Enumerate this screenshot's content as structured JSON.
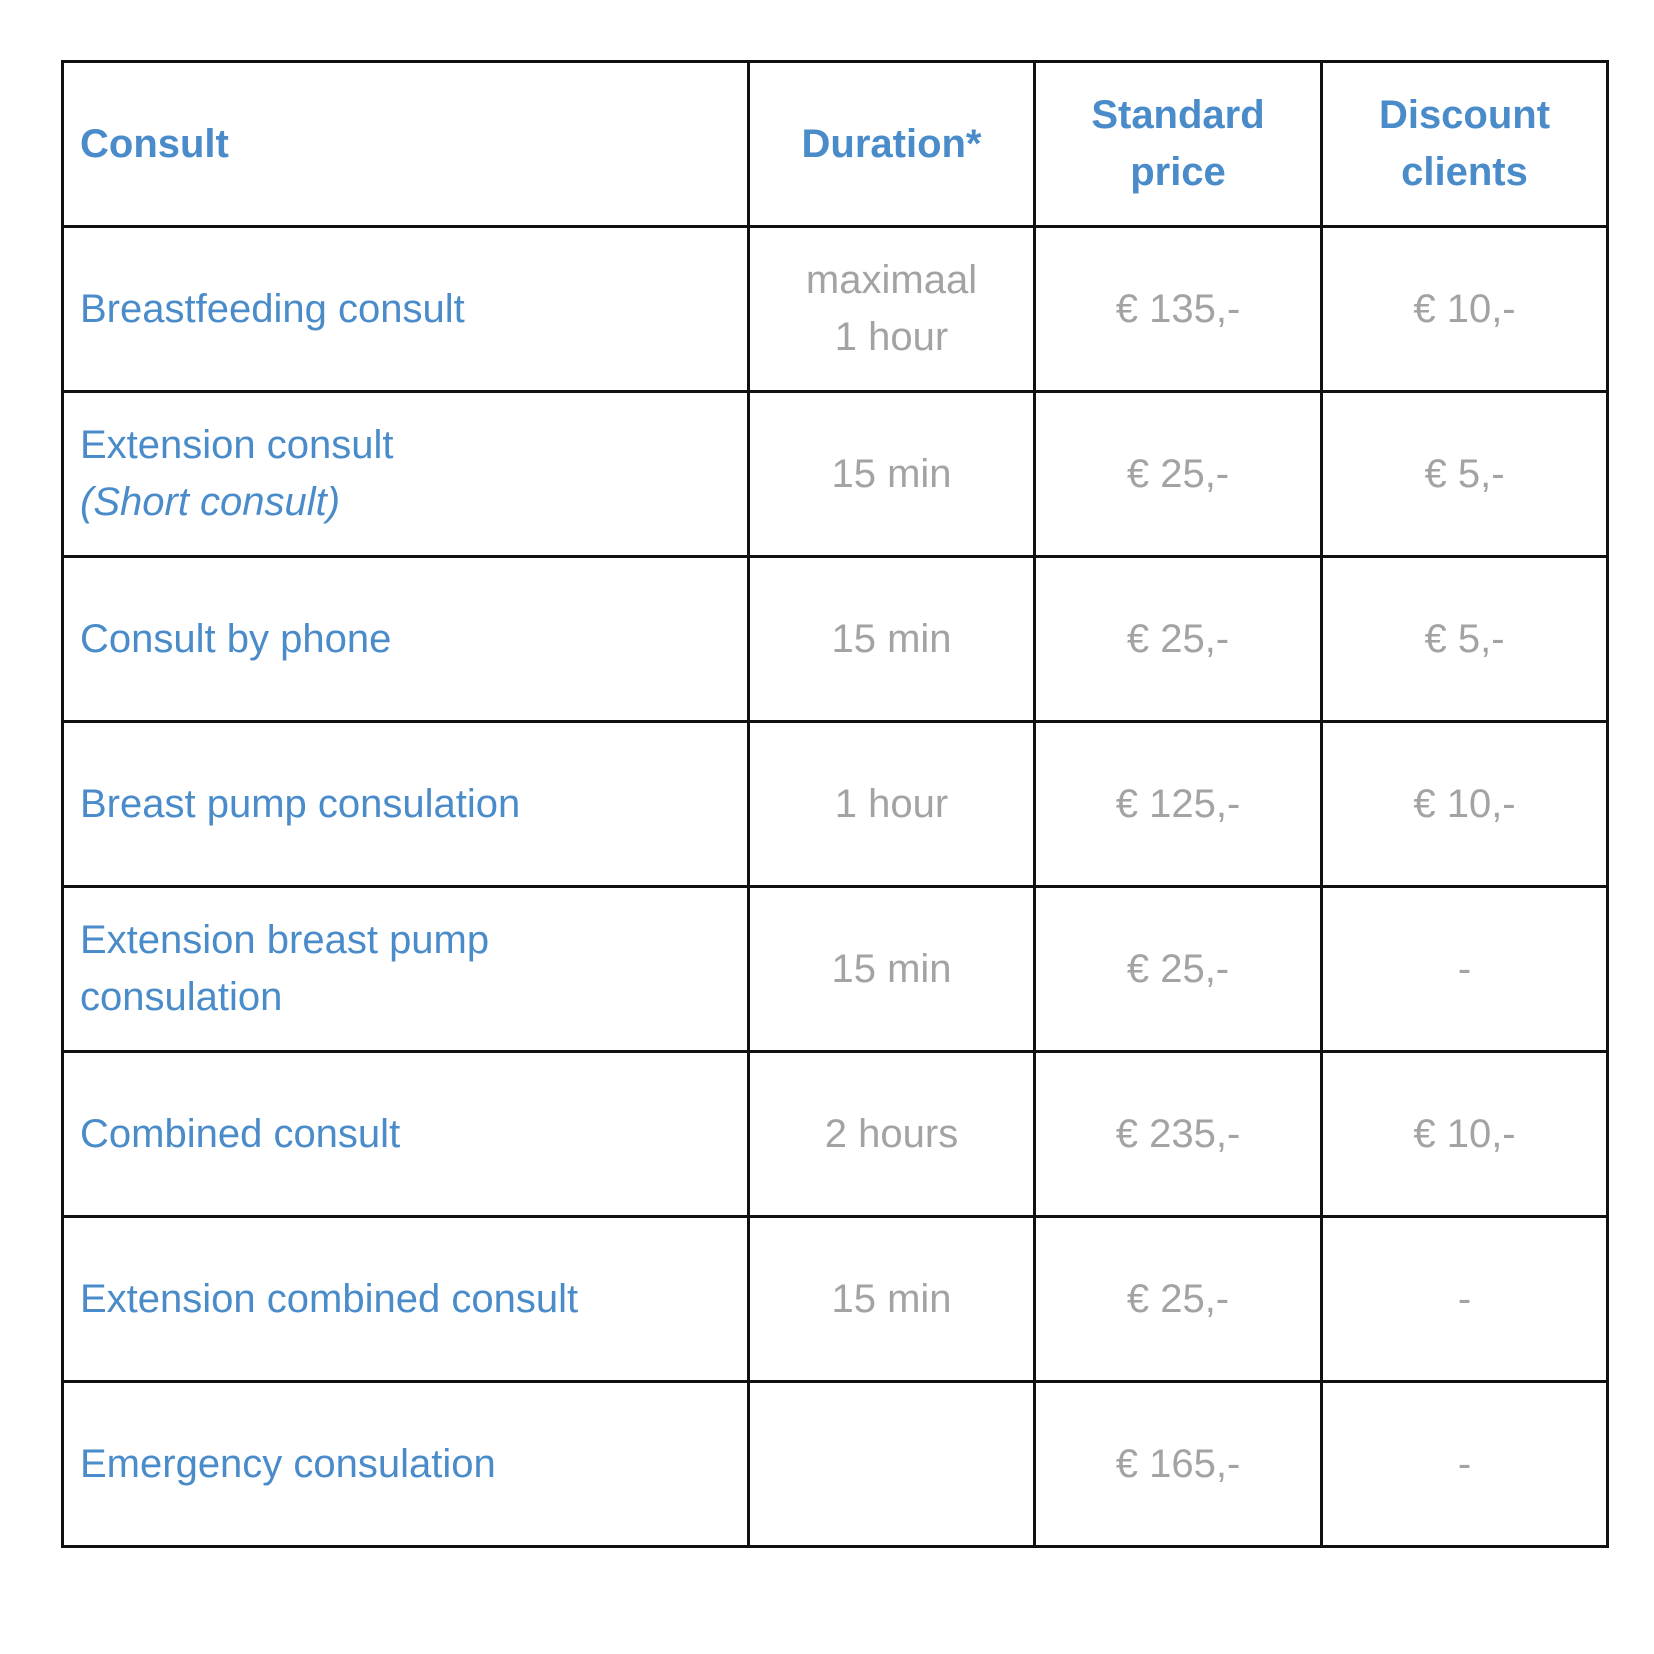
{
  "header": {
    "consult": "Consult",
    "duration": "Duration*",
    "standard_price": "Standard\nprice",
    "discount_clients": "Discount\nclients"
  },
  "rows": [
    {
      "consult": "Breastfeeding consult",
      "note": "",
      "duration": "maximaal\n1 hour",
      "standard": "€ 135,-",
      "discount": "€ 10,-"
    },
    {
      "consult": "Extension consult",
      "note": "(Short consult)",
      "duration": "15 min",
      "standard": "€ 25,-",
      "discount": "€ 5,-"
    },
    {
      "consult": "Consult by phone",
      "note": "",
      "duration": "15 min",
      "standard": "€ 25,-",
      "discount": "€ 5,-"
    },
    {
      "consult": "Breast pump consulation",
      "note": "",
      "duration": "1 hour",
      "standard": "€ 125,-",
      "discount": "€ 10,-"
    },
    {
      "consult": "Extension breast pump\nconsulation",
      "note": "",
      "duration": "15 min",
      "standard": "€ 25,-",
      "discount": "-"
    },
    {
      "consult": "Combined consult",
      "note": "",
      "duration": "2 hours",
      "standard": "€ 235,-",
      "discount": "€ 10,-"
    },
    {
      "consult": "Extension combined consult",
      "note": "",
      "duration": "15 min",
      "standard": "€ 25,-",
      "discount": "-"
    },
    {
      "consult": "Emergency consulation",
      "note": "",
      "duration": "",
      "standard": "€ 165,-",
      "discount": "-"
    }
  ]
}
